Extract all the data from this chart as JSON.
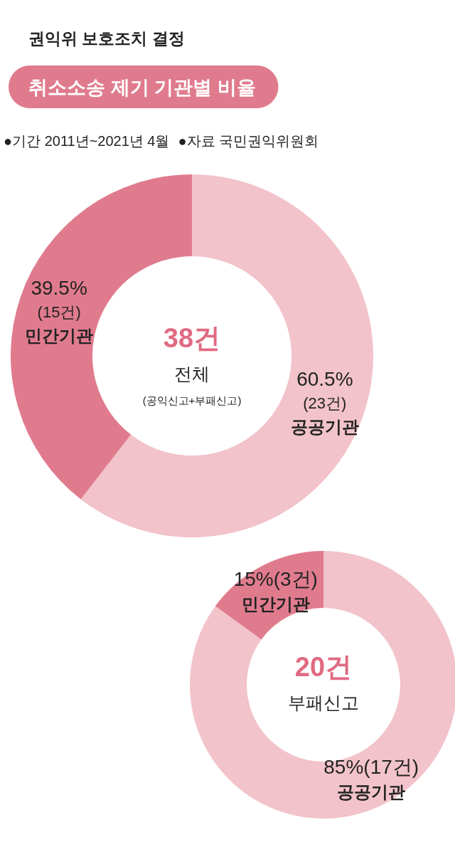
{
  "chart_data": [
    {
      "type": "other",
      "title": "권익위 보호조치 결정",
      "subtitle": "취소소송 제기 기관별 비율",
      "annotations": [
        "●기간 2011년~2021년 4월",
        "●자료  국민권익위원회"
      ]
    },
    {
      "type": "donut",
      "categories": [
        "공공기관",
        "민간기관"
      ],
      "values": [
        60.5,
        39.5
      ],
      "colors": [
        "#f2c3ca",
        "#e07b8e"
      ],
      "value_labels": [
        "60.5%\n(23건)",
        "39.5%\n(15건)"
      ],
      "annotations": [
        "38건",
        "전체",
        "(공익신고+부패신고)"
      ]
    },
    {
      "type": "donut",
      "categories": [
        "공공기관",
        "민간기관"
      ],
      "values": [
        85,
        15
      ],
      "colors": [
        "#f2c3ca",
        "#e07b8e"
      ],
      "value_labels": [
        "85%(17건)",
        "15%(3건)"
      ],
      "annotations": [
        "20건",
        "부패신고"
      ]
    }
  ]
}
